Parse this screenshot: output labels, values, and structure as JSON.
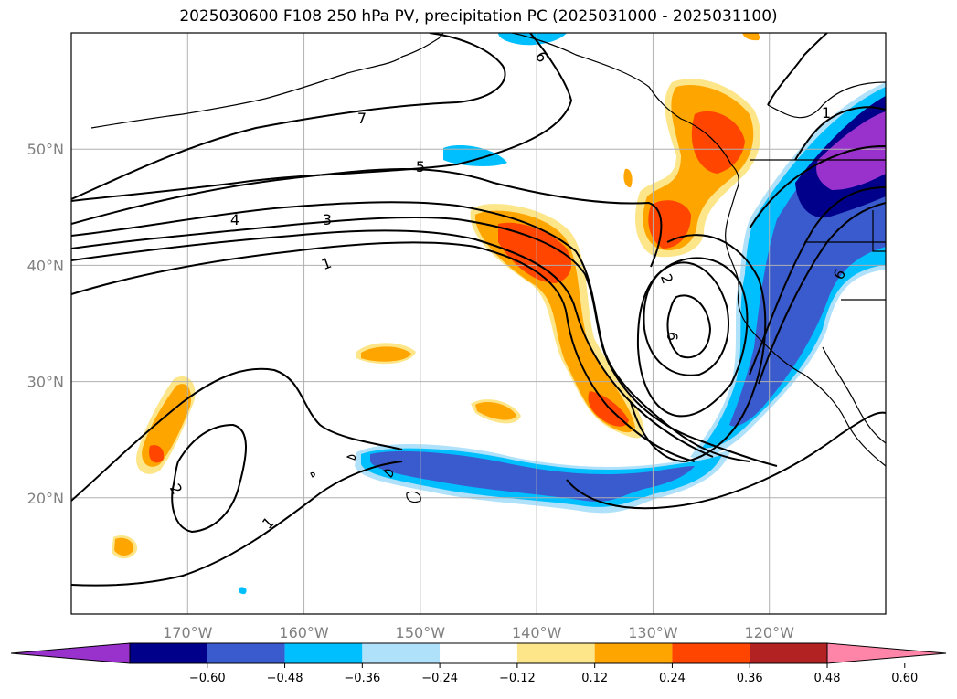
{
  "title": "2025030600 F108 250 hPa PV, precipitation PC (2025031000 - 2025031100)",
  "chart_data": {
    "type": "contour-map",
    "title": "2025030600 F108 250 hPa PV, precipitation PC (2025031000 - 2025031100)",
    "map": {
      "lon_range": [
        -180,
        -110
      ],
      "lat_range": [
        10,
        60
      ],
      "lat_gridlines": [
        20,
        30,
        40,
        50
      ],
      "lon_gridlines": [
        -170,
        -160,
        -150,
        -140,
        -130,
        -120
      ],
      "lat_tick_labels": [
        "20°N",
        "30°N",
        "40°N",
        "50°N"
      ],
      "lon_tick_labels": [
        "170°W",
        "160°W",
        "150°W",
        "140°W",
        "130°W",
        "120°W"
      ],
      "grid": true
    },
    "pv_contours": {
      "levels": [
        1,
        2,
        3,
        4,
        5,
        6,
        7
      ],
      "visible_labels": [
        "7",
        "6",
        "5",
        "4",
        "3",
        "1",
        "2",
        "1",
        "2",
        "6",
        "1",
        "6"
      ],
      "color": "#000000"
    },
    "precipitation_pc": {
      "colorbar": {
        "boundaries": [
          -0.6,
          -0.48,
          -0.36,
          -0.24,
          -0.12,
          0.12,
          0.24,
          0.36,
          0.48,
          0.6
        ],
        "tick_labels": [
          "−0.60",
          "−0.48",
          "−0.36",
          "−0.24",
          "−0.12",
          "0.12",
          "0.24",
          "0.36",
          "0.48",
          "0.60"
        ],
        "colors": [
          "#9932cc",
          "#00008b",
          "#3a5bcd",
          "#00bfff",
          "#afe1fa",
          "#ffffff",
          "#fde68a",
          "#ffa500",
          "#ff4500",
          "#b22222",
          "#ff85a8"
        ],
        "extend": "both"
      },
      "features": [
        {
          "region": "Central Pacific off California (~42N 142W to ~27N 133W)",
          "sign": "positive",
          "max": 0.48
        },
        {
          "region": "Pacific Northwest coast (~54N 128W to ~40N 130W)",
          "sign": "positive",
          "max": 0.48
        },
        {
          "region": "Subtropical Pacific near 23N 170W",
          "sign": "positive",
          "max": 0.48
        },
        {
          "region": "US West / Northern Rockies (~52N 115W to ~22N 125W)",
          "sign": "negative",
          "min": -0.6
        },
        {
          "region": "Subtropical band near Hawaii (~23N 155W to ~20N 130W)",
          "sign": "negative",
          "min": -0.48
        },
        {
          "region": "Small patch ~49N 146W",
          "sign": "negative",
          "min": -0.36
        },
        {
          "region": "Small patches ~32N 147W and ~28N 142W",
          "sign": "positive",
          "max": 0.36
        }
      ]
    }
  }
}
